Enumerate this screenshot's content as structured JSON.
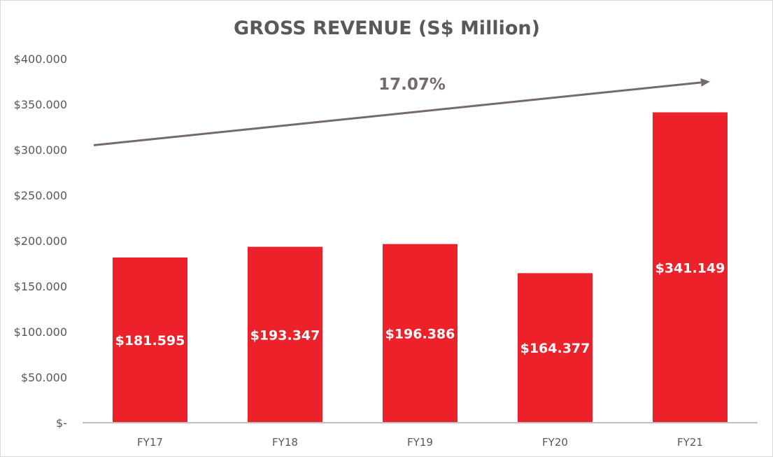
{
  "chart_data": {
    "type": "bar",
    "title": "GROSS REVENUE (S$ Million)",
    "categories": [
      "FY17",
      "FY18",
      "FY19",
      "FY20",
      "FY21"
    ],
    "values": [
      181.595,
      193.347,
      196.386,
      164.377,
      341.149
    ],
    "data_labels": [
      "$181.595",
      "$193.347",
      "$196.386",
      "$164.377",
      "$341.149"
    ],
    "y_ticks": [
      0,
      50,
      100,
      150,
      200,
      250,
      300,
      350,
      400
    ],
    "y_tick_labels": [
      "$-",
      "$50.000",
      "$100.000",
      "$150.000",
      "$200.000",
      "$250.000",
      "$300.000",
      "$350.000",
      "$400.000"
    ],
    "ylim": [
      0,
      400
    ],
    "xlabel": "",
    "ylabel": "",
    "grid": false,
    "legend": "none",
    "annotation": {
      "text": "17.07%",
      "arrow_start_value": 305,
      "arrow_end_value": 375
    },
    "colors": {
      "bar": "#ed2129",
      "axis": "#bfbfbf",
      "text": "#595959",
      "arrow": "#756a68",
      "bar_label": "#ffffff"
    }
  }
}
